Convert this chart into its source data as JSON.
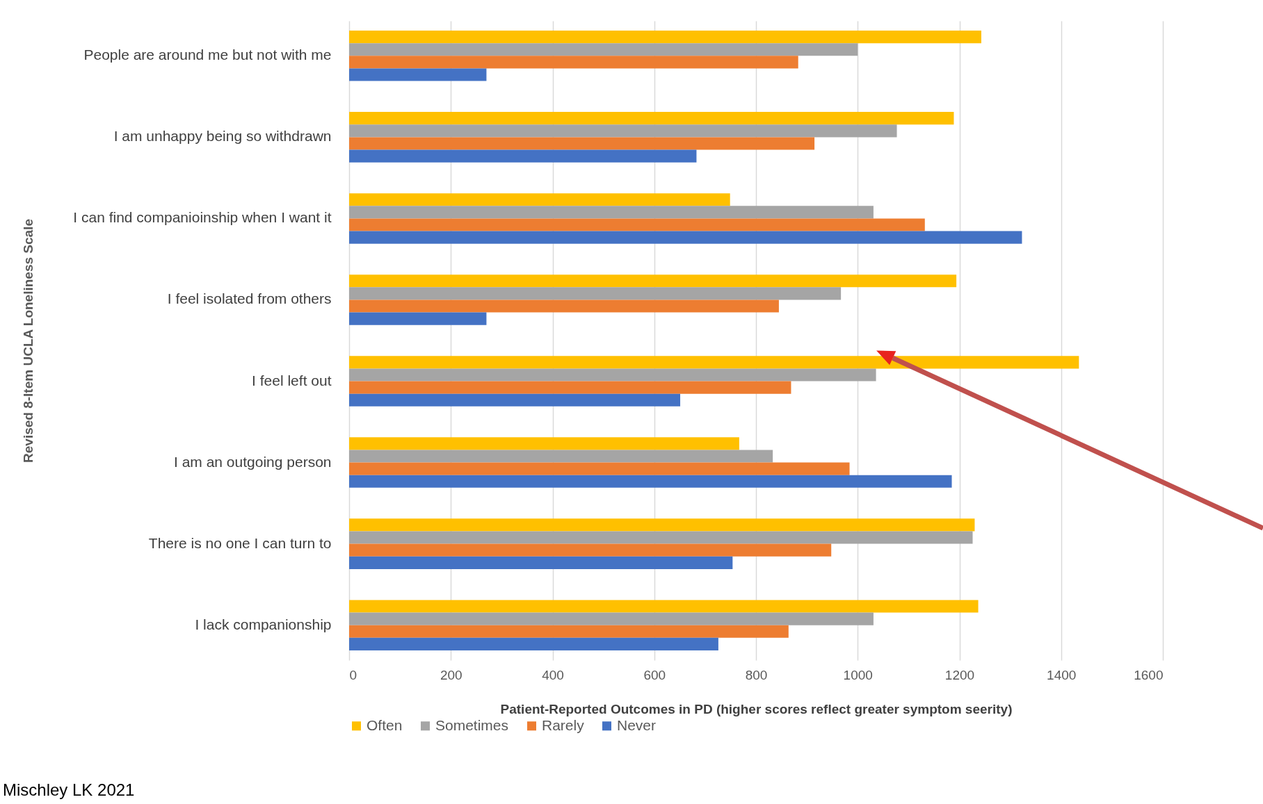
{
  "chart_data": {
    "type": "bar",
    "orientation": "horizontal",
    "xlabel": "Patient-Reported Outcomes in PD  (higher scores reflect greater symptom seerity)",
    "ylabel": "Revised 8-Item UCLA Loneliness Scale",
    "categories": [
      "People are around me but not with me",
      "I am unhappy being so withdrawn",
      "I can find companioinship when I want it",
      "I feel isolated from others",
      "I feel left out",
      "I am an outgoing person",
      "There is no one I can turn to",
      "I lack companionship"
    ],
    "series": [
      {
        "name": "Often",
        "color": "#ffc000",
        "values": [
          1243,
          1189,
          749,
          1194,
          1435,
          767,
          1230,
          1237
        ]
      },
      {
        "name": "Sometimes",
        "color": "#a5a5a5",
        "values": [
          1000,
          1077,
          1031,
          967,
          1036,
          833,
          1226,
          1031
        ]
      },
      {
        "name": "Rarely",
        "color": "#ed7d31",
        "values": [
          883,
          915,
          1132,
          845,
          869,
          984,
          948,
          864
        ]
      },
      {
        "name": "Never",
        "color": "#4472c4",
        "values": [
          270,
          683,
          1323,
          270,
          651,
          1185,
          754,
          726
        ]
      }
    ],
    "xlim": [
      0,
      1600
    ],
    "xticks": [
      0,
      200,
      400,
      600,
      800,
      1000,
      1200,
      1400,
      1600
    ],
    "grid": "x",
    "legend": "bottom",
    "annotations": [
      "Mischley LK 2021"
    ]
  }
}
